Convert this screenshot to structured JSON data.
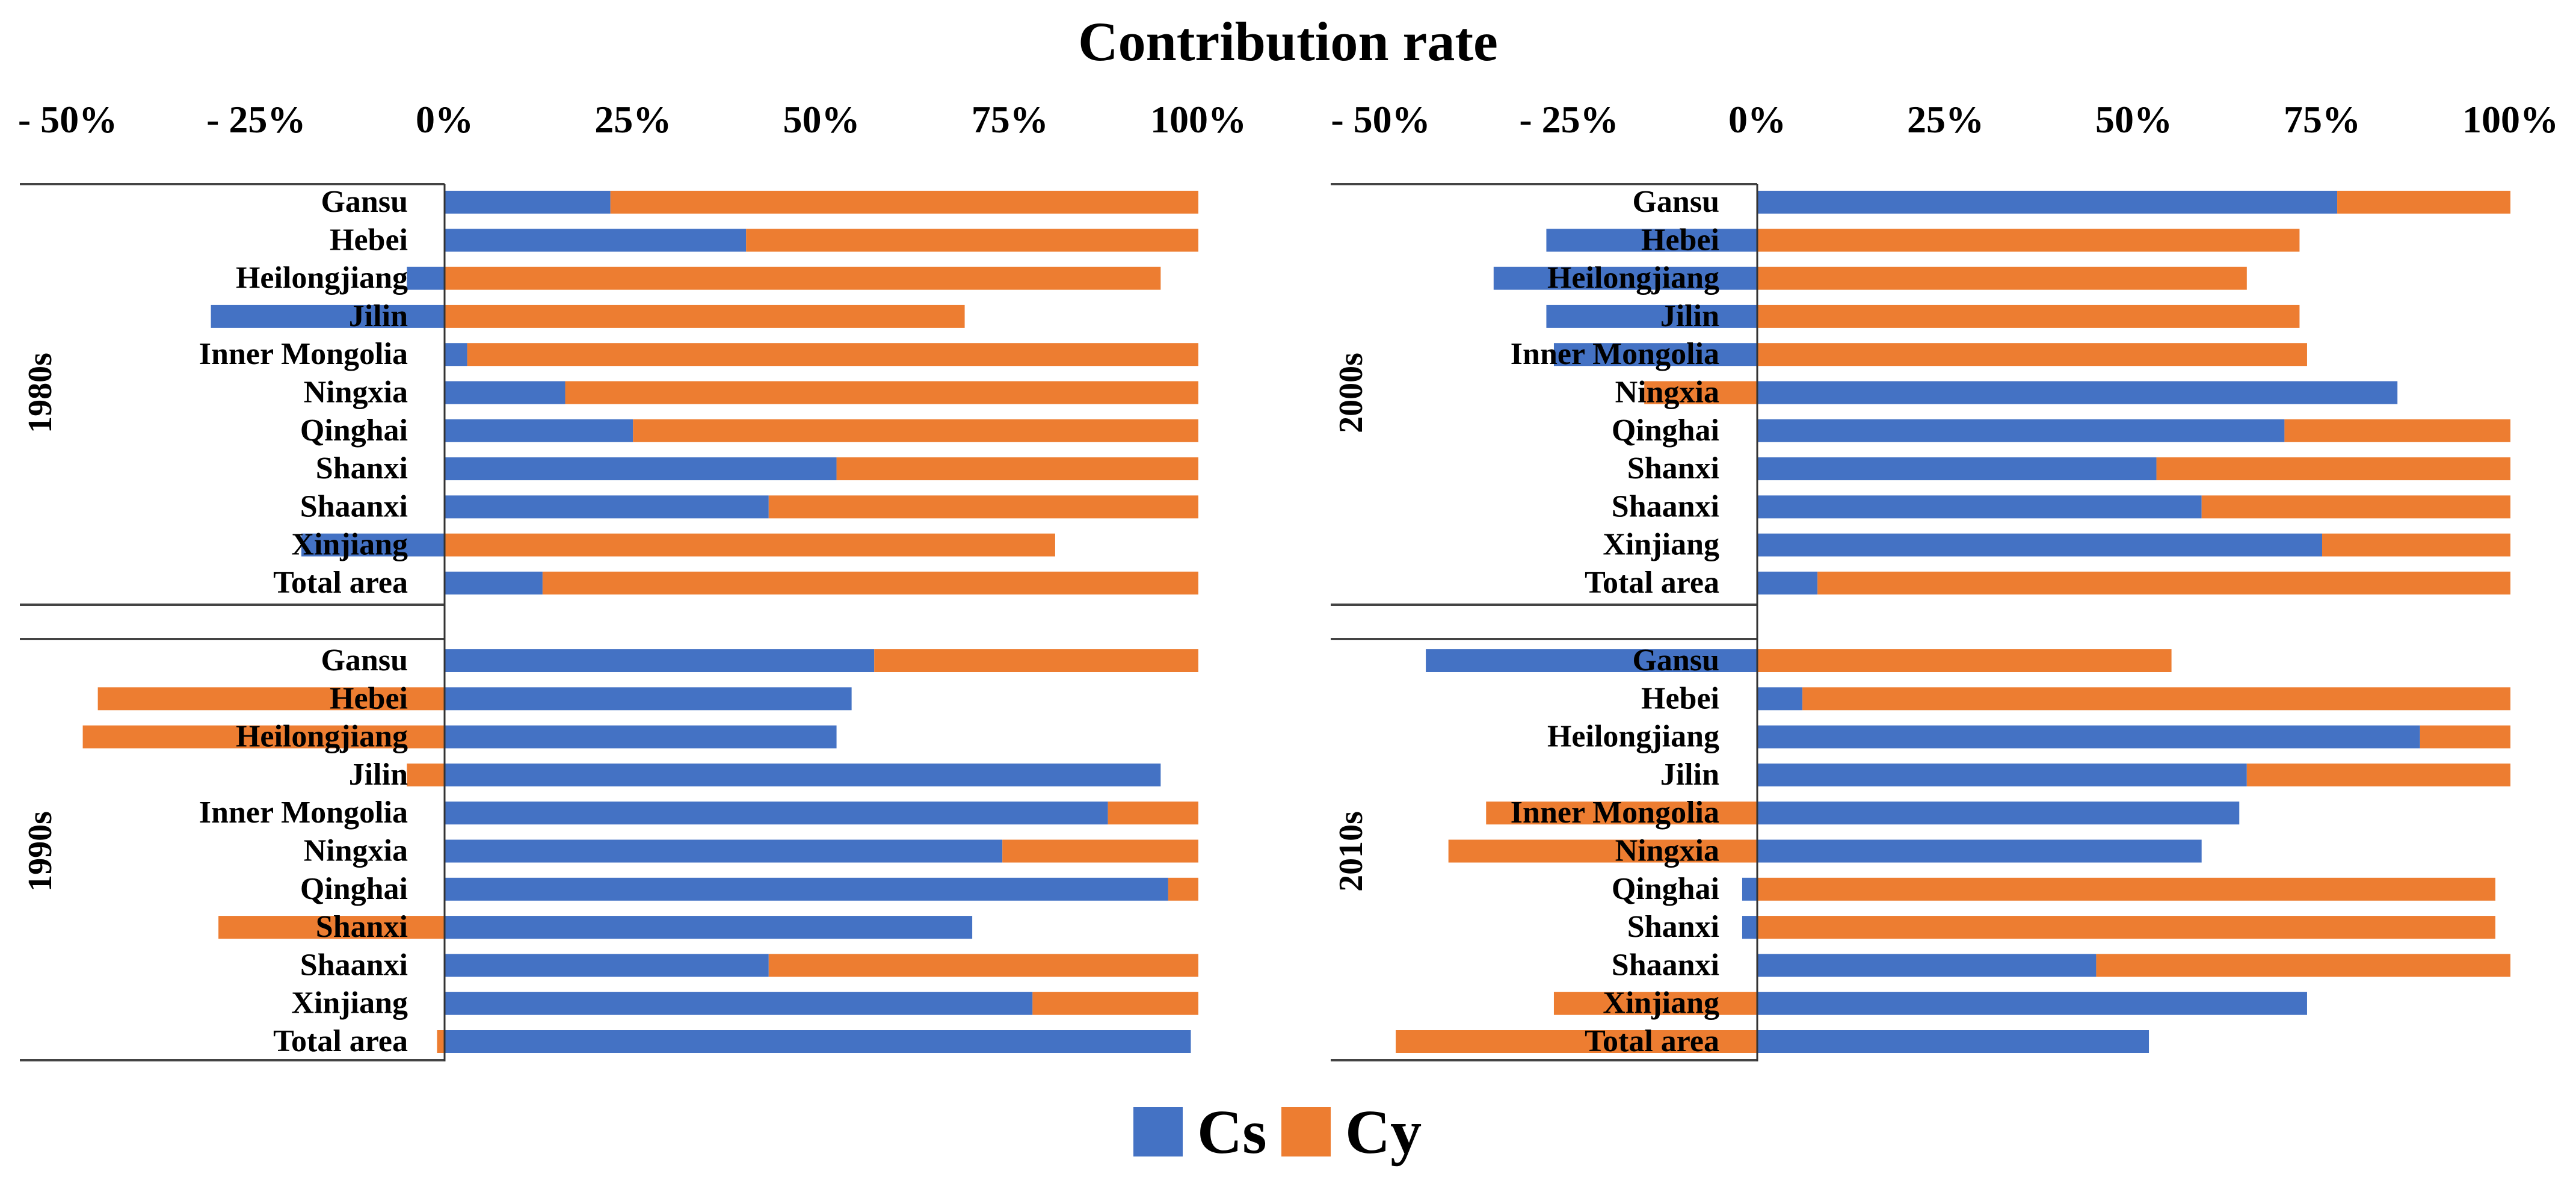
{
  "chart_data": {
    "type": "bar",
    "orientation": "horizontal",
    "stacked": true,
    "title": "Contribution rate",
    "xlim": [
      -50,
      100
    ],
    "x_ticks": [
      "- 50%",
      "- 25%",
      "0%",
      "25%",
      "50%",
      "75%",
      "100%"
    ],
    "x_tick_values": [
      -50,
      -25,
      0,
      25,
      50,
      75,
      100
    ],
    "legend": {
      "position": "bottom-center",
      "entries": [
        "Cs",
        "Cy"
      ]
    },
    "colors": {
      "Cs": "#4472C4",
      "Cy": "#ED7D31"
    },
    "categories": [
      "Gansu",
      "Hebei",
      "Heilongjiang",
      "Jilin",
      "Inner Mongolia",
      "Ningxia",
      "Qinghai",
      "Shanxi",
      "Shaanxi",
      "Xinjiang",
      "Total area"
    ],
    "panels": [
      {
        "side": "left",
        "groups": [
          {
            "period": "1980s",
            "series": [
              {
                "name": "Cs",
                "values": [
                  22,
                  40,
                  -5,
                  -31,
                  3,
                  16,
                  25,
                  52,
                  43,
                  -19,
                  13
                ]
              },
              {
                "name": "Cy",
                "values": [
                  78,
                  60,
                  95,
                  69,
                  97,
                  84,
                  75,
                  48,
                  57,
                  81,
                  87
                ]
              }
            ]
          },
          {
            "period": "1990s",
            "series": [
              {
                "name": "Cs",
                "values": [
                  57,
                  54,
                  52,
                  95,
                  88,
                  74,
                  96,
                  70,
                  43,
                  78,
                  99
                ]
              },
              {
                "name": "Cy",
                "values": [
                  43,
                  -46,
                  -48,
                  -5,
                  12,
                  26,
                  4,
                  -30,
                  57,
                  22,
                  -1
                ]
              }
            ]
          }
        ]
      },
      {
        "side": "right",
        "groups": [
          {
            "period": "2000s",
            "series": [
              {
                "name": "Cs",
                "values": [
                  77,
                  -28,
                  -35,
                  -28,
                  -27,
                  85,
                  70,
                  53,
                  59,
                  75,
                  8
                ]
              },
              {
                "name": "Cy",
                "values": [
                  23,
                  72,
                  65,
                  72,
                  73,
                  -15,
                  30,
                  47,
                  41,
                  25,
                  92
                ]
              }
            ]
          },
          {
            "period": "2010s",
            "series": [
              {
                "name": "Cs",
                "values": [
                  -44,
                  6,
                  88,
                  65,
                  64,
                  59,
                  -2,
                  -2,
                  45,
                  73,
                  52
                ]
              },
              {
                "name": "Cy",
                "values": [
                  55,
                  94,
                  12,
                  35,
                  -36,
                  -41,
                  98,
                  98,
                  55,
                  -27,
                  -48
                ]
              }
            ]
          }
        ]
      }
    ]
  }
}
